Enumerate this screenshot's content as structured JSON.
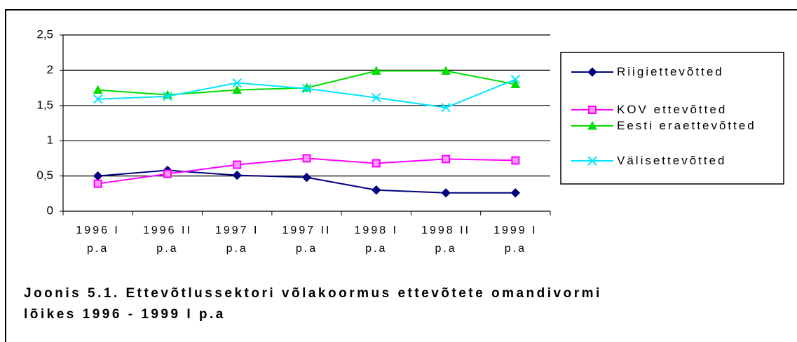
{
  "chart_data": {
    "type": "line",
    "title": "Joonis 5.1. Ettevõtlussektori võlakoormus ettevõtete omandivormi lõikes 1996 - 1999 I p.a",
    "categories": [
      "1996 I p.a",
      "1996 II p.a",
      "1997 I p.a",
      "1997 II p.a",
      "1998 I p.a",
      "1998 II p.a",
      "1999 I p.a"
    ],
    "series": [
      {
        "name": "Riigiettevõtted",
        "color": "#000080",
        "marker": "diamond",
        "values": [
          0.5,
          0.58,
          0.51,
          0.48,
          0.3,
          0.26,
          0.26
        ]
      },
      {
        "name": "KOV ettevõtted",
        "color": "#ff00ff",
        "marker": "square",
        "values": [
          0.39,
          0.53,
          0.66,
          0.75,
          0.68,
          0.74,
          0.72
        ]
      },
      {
        "name": "Eesti eraettevõtted",
        "color": "#00dd00",
        "marker": "triangle",
        "values": [
          1.72,
          1.65,
          1.72,
          1.75,
          1.99,
          1.99,
          1.8
        ]
      },
      {
        "name": "Välisettevõtted",
        "color": "#00e5ff",
        "marker": "cross",
        "values": [
          1.59,
          1.63,
          1.82,
          1.74,
          1.61,
          1.47,
          1.87
        ]
      }
    ],
    "ylim": [
      0,
      2.5
    ],
    "yticks": [
      0,
      {
        "value": 0.5,
        "label": "0,5"
      },
      1,
      {
        "value": 1.5,
        "label": "1,5"
      },
      2,
      {
        "value": 2.5,
        "label": "2,5"
      }
    ],
    "grid": true,
    "legend": "right"
  }
}
